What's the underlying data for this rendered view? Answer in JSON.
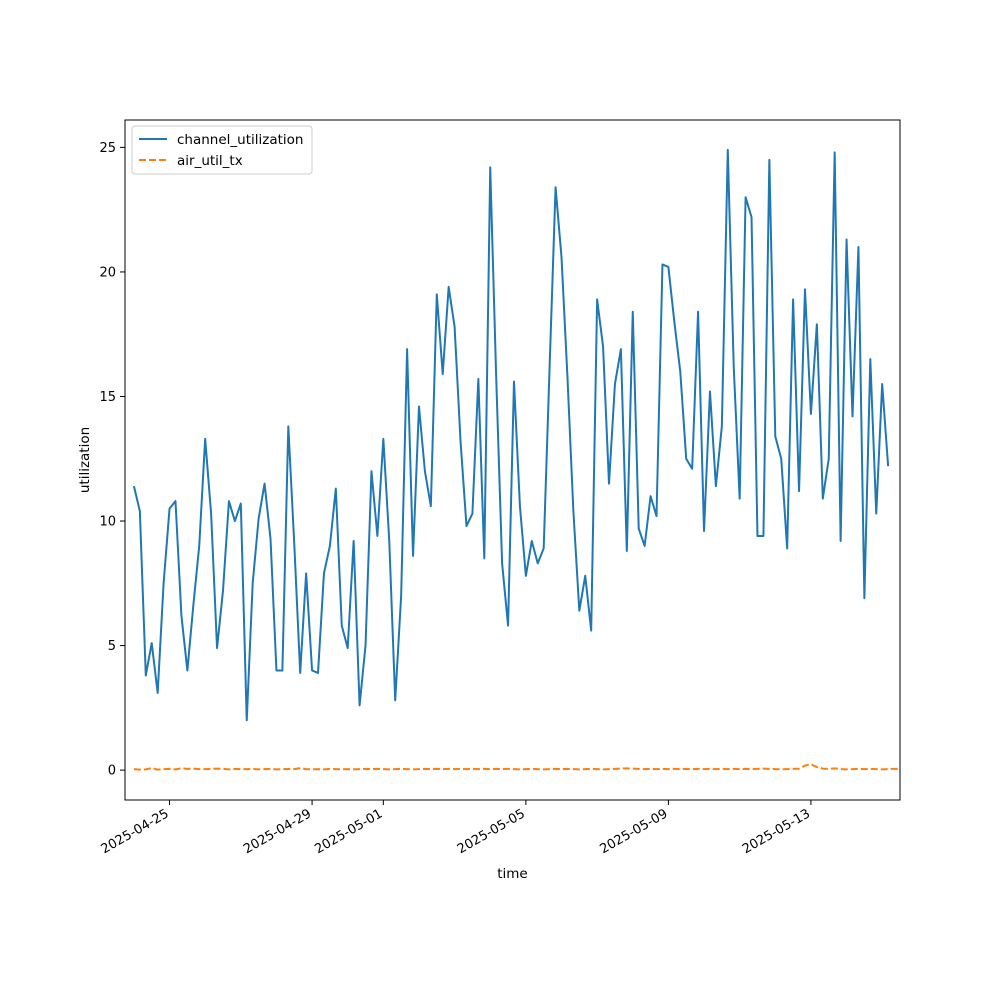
{
  "chart_data": {
    "type": "line",
    "xlabel": "time",
    "ylabel": "utilization",
    "xlim": [
      "2025-04-23T18:00",
      "2025-05-15T12:00"
    ],
    "ylim": [
      -1.2,
      26.1
    ],
    "x_ticks": [
      {
        "date": "2025-04-25",
        "label": "2025-04-25"
      },
      {
        "date": "2025-04-29",
        "label": "2025-04-29"
      },
      {
        "date": "2025-05-01",
        "label": "2025-05-01"
      },
      {
        "date": "2025-05-05",
        "label": "2025-05-05"
      },
      {
        "date": "2025-05-09",
        "label": "2025-05-09"
      },
      {
        "date": "2025-05-13",
        "label": "2025-05-13"
      }
    ],
    "y_ticks": [
      0,
      5,
      10,
      15,
      20,
      25
    ],
    "grid": false,
    "legend_position": "upper-left",
    "start_date": "2025-04-24",
    "interval_hours": 4,
    "series": [
      {
        "name": "channel_utilization",
        "color": "#1f77b4",
        "style": "solid",
        "values": [
          11.4,
          10.4,
          3.8,
          5.1,
          3.1,
          7.5,
          10.5,
          10.8,
          6.2,
          4.0,
          6.6,
          9.0,
          13.3,
          10.3,
          4.9,
          7.2,
          10.8,
          10.0,
          10.7,
          2.0,
          7.5,
          10.1,
          11.5,
          9.3,
          4.0,
          4.0,
          13.8,
          9.1,
          3.9,
          7.9,
          4.0,
          3.9,
          7.9,
          9.0,
          11.3,
          5.8,
          4.9,
          9.2,
          2.6,
          5.0,
          12.0,
          9.4,
          13.3,
          9.2,
          2.8,
          7.0,
          16.9,
          8.6,
          14.6,
          12.0,
          10.6,
          19.1,
          15.9,
          19.4,
          17.8,
          13.2,
          9.8,
          10.3,
          15.7,
          8.5,
          24.2,
          15.8,
          8.3,
          5.8,
          15.6,
          10.6,
          7.8,
          9.2,
          8.3,
          8.9,
          16.2,
          23.4,
          20.6,
          15.8,
          10.4,
          6.4,
          7.8,
          5.6,
          18.9,
          17.0,
          11.5,
          15.5,
          16.9,
          8.8,
          18.4,
          9.7,
          9.0,
          11.0,
          10.2,
          20.3,
          20.2,
          18.0,
          16.0,
          12.5,
          12.1,
          18.4,
          9.6,
          15.2,
          11.4,
          13.8,
          24.9,
          16.2,
          10.9,
          23.0,
          22.2,
          9.4,
          9.4,
          24.5,
          13.4,
          12.5,
          8.9,
          18.9,
          11.2,
          19.3,
          14.3,
          17.9,
          10.9,
          12.5,
          24.8,
          9.2,
          21.3,
          14.2,
          21.0,
          6.9,
          16.5,
          10.3,
          15.5,
          12.2
        ]
      },
      {
        "name": "air_util_tx",
        "color": "#ff7f0e",
        "style": "dashed",
        "values": [
          0.04,
          0.02,
          0.03,
          0.08,
          0.02,
          0.04,
          0.05,
          0.03,
          0.07,
          0.05,
          0.06,
          0.04,
          0.04,
          0.05,
          0.06,
          0.05,
          0.03,
          0.05,
          0.04,
          0.04,
          0.05,
          0.03,
          0.04,
          0.05,
          0.03,
          0.04,
          0.05,
          0.04,
          0.08,
          0.04,
          0.03,
          0.04,
          0.03,
          0.05,
          0.04,
          0.03,
          0.04,
          0.03,
          0.04,
          0.05,
          0.04,
          0.05,
          0.04,
          0.03,
          0.04,
          0.05,
          0.04,
          0.03,
          0.04,
          0.05,
          0.04,
          0.05,
          0.04,
          0.05,
          0.04,
          0.05,
          0.04,
          0.05,
          0.04,
          0.05,
          0.04,
          0.05,
          0.04,
          0.05,
          0.04,
          0.03,
          0.04,
          0.05,
          0.04,
          0.03,
          0.04,
          0.05,
          0.04,
          0.05,
          0.04,
          0.03,
          0.04,
          0.05,
          0.04,
          0.03,
          0.04,
          0.05,
          0.06,
          0.07,
          0.06,
          0.05,
          0.04,
          0.05,
          0.04,
          0.05,
          0.04,
          0.05,
          0.04,
          0.05,
          0.04,
          0.05,
          0.04,
          0.05,
          0.04,
          0.05,
          0.04,
          0.05,
          0.04,
          0.05,
          0.04,
          0.05,
          0.06,
          0.05,
          0.04,
          0.03,
          0.04,
          0.05,
          0.06,
          0.18,
          0.24,
          0.12,
          0.06,
          0.05,
          0.07,
          0.04,
          0.03,
          0.04,
          0.05,
          0.04,
          0.05,
          0.04,
          0.03,
          0.04,
          0.05,
          0.05
        ]
      }
    ]
  }
}
